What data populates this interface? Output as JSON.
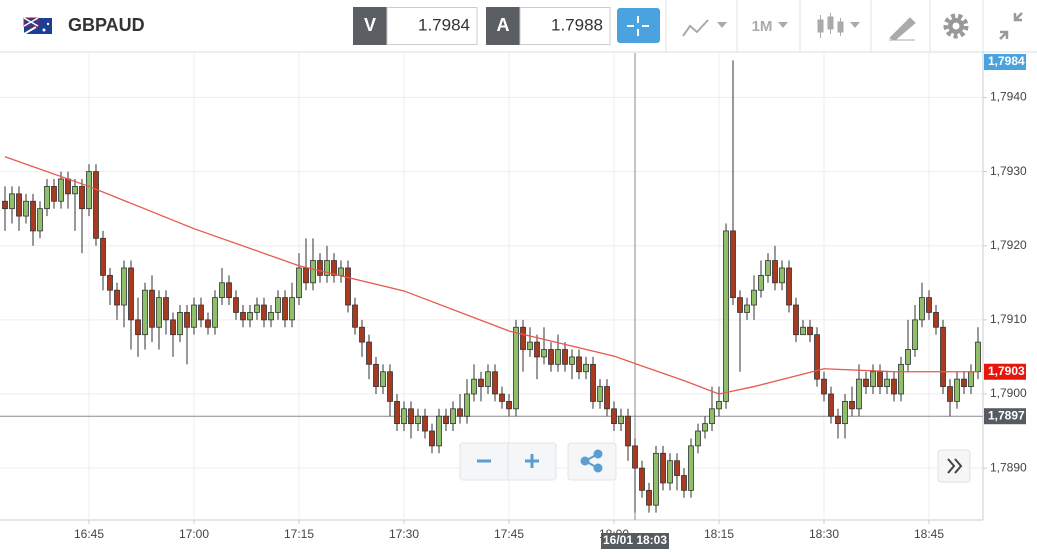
{
  "header": {
    "symbol": "GBPAUD",
    "bid_label": "V",
    "bid": "1.7984",
    "ask_label": "A",
    "ask": "1.7988",
    "timeframe": "1M"
  },
  "chart_data": {
    "type": "candlestick",
    "x": [
      "16:33",
      "16:34",
      "16:35",
      "16:36",
      "16:37",
      "16:38",
      "16:39",
      "16:40",
      "16:41",
      "16:42",
      "16:43",
      "16:44",
      "16:45",
      "16:46",
      "16:47",
      "16:48",
      "16:49",
      "16:50",
      "16:51",
      "16:52",
      "16:53",
      "16:54",
      "16:55",
      "16:56",
      "16:57",
      "16:58",
      "16:59",
      "17:00",
      "17:01",
      "17:02",
      "17:03",
      "17:04",
      "17:05",
      "17:06",
      "17:07",
      "17:08",
      "17:09",
      "17:10",
      "17:11",
      "17:12",
      "17:13",
      "17:14",
      "17:15",
      "17:16",
      "17:17",
      "17:18",
      "17:19",
      "17:20",
      "17:21",
      "17:22",
      "17:23",
      "17:24",
      "17:25",
      "17:26",
      "17:27",
      "17:28",
      "17:29",
      "17:30",
      "17:31",
      "17:32",
      "17:33",
      "17:34",
      "17:35",
      "17:36",
      "17:37",
      "17:38",
      "17:39",
      "17:40",
      "17:41",
      "17:42",
      "17:43",
      "17:44",
      "17:45",
      "17:46",
      "17:47",
      "17:48",
      "17:49",
      "17:50",
      "17:51",
      "17:52",
      "17:53",
      "17:54",
      "17:55",
      "17:56",
      "17:57",
      "17:58",
      "17:59",
      "18:00",
      "18:01",
      "18:02",
      "18:03",
      "18:04",
      "18:05",
      "18:06",
      "18:07",
      "18:08",
      "18:09",
      "18:10",
      "18:11",
      "18:12",
      "18:13",
      "18:14",
      "18:15",
      "18:16",
      "18:17",
      "18:18",
      "18:19",
      "18:20",
      "18:21",
      "18:22",
      "18:23",
      "18:24",
      "18:25",
      "18:26",
      "18:27",
      "18:28",
      "18:29",
      "18:30",
      "18:31",
      "18:32",
      "18:33",
      "18:34",
      "18:35",
      "18:36",
      "18:37",
      "18:38",
      "18:39",
      "18:40",
      "18:41",
      "18:42",
      "18:43",
      "18:44",
      "18:45",
      "18:46",
      "18:47",
      "18:48",
      "18:49",
      "18:50",
      "18:51",
      "18:52"
    ],
    "ohlc": [
      [
        1.7926,
        1.7928,
        1.7922,
        1.7925
      ],
      [
        1.7925,
        1.7928,
        1.7923,
        1.7927
      ],
      [
        1.7927,
        1.7928,
        1.7922,
        1.7924
      ],
      [
        1.7924,
        1.7927,
        1.7923,
        1.7926
      ],
      [
        1.7926,
        1.7927,
        1.792,
        1.7922
      ],
      [
        1.7922,
        1.7926,
        1.7921,
        1.7925
      ],
      [
        1.7925,
        1.7929,
        1.7924,
        1.7928
      ],
      [
        1.7928,
        1.7929,
        1.7925,
        1.7926
      ],
      [
        1.7926,
        1.793,
        1.7925,
        1.7929
      ],
      [
        1.7929,
        1.793,
        1.7925,
        1.7927
      ],
      [
        1.7927,
        1.7929,
        1.7922,
        1.7928
      ],
      [
        1.7928,
        1.7929,
        1.7919,
        1.7925
      ],
      [
        1.7925,
        1.7931,
        1.7924,
        1.793
      ],
      [
        1.793,
        1.7931,
        1.792,
        1.7921
      ],
      [
        1.7921,
        1.7922,
        1.7914,
        1.7916
      ],
      [
        1.7916,
        1.7917,
        1.7912,
        1.7914
      ],
      [
        1.7914,
        1.7915,
        1.791,
        1.7912
      ],
      [
        1.7912,
        1.7918,
        1.7909,
        1.7917
      ],
      [
        1.7917,
        1.7918,
        1.7906,
        1.791
      ],
      [
        1.791,
        1.7913,
        1.7905,
        1.7908
      ],
      [
        1.7908,
        1.7915,
        1.7906,
        1.7914
      ],
      [
        1.7914,
        1.7916,
        1.7907,
        1.7909
      ],
      [
        1.7909,
        1.7914,
        1.7906,
        1.7913
      ],
      [
        1.7913,
        1.7914,
        1.7908,
        1.791
      ],
      [
        1.791,
        1.7911,
        1.7905,
        1.7908
      ],
      [
        1.7908,
        1.7912,
        1.7907,
        1.7911
      ],
      [
        1.7911,
        1.7912,
        1.7904,
        1.7909
      ],
      [
        1.7909,
        1.7913,
        1.7908,
        1.7912
      ],
      [
        1.7912,
        1.7913,
        1.7909,
        1.791
      ],
      [
        1.791,
        1.7911,
        1.7908,
        1.7909
      ],
      [
        1.7909,
        1.7914,
        1.7908,
        1.7913
      ],
      [
        1.7913,
        1.7917,
        1.7912,
        1.7915
      ],
      [
        1.7915,
        1.7916,
        1.7912,
        1.7913
      ],
      [
        1.7913,
        1.7914,
        1.791,
        1.7911
      ],
      [
        1.7911,
        1.7912,
        1.7909,
        1.791
      ],
      [
        1.791,
        1.7912,
        1.7909,
        1.7911
      ],
      [
        1.7911,
        1.7913,
        1.791,
        1.7912
      ],
      [
        1.7912,
        1.7913,
        1.7909,
        1.791
      ],
      [
        1.791,
        1.7912,
        1.7909,
        1.7911
      ],
      [
        1.7911,
        1.7914,
        1.791,
        1.7913
      ],
      [
        1.7913,
        1.7914,
        1.7909,
        1.791
      ],
      [
        1.791,
        1.7915,
        1.7909,
        1.7913
      ],
      [
        1.7913,
        1.7919,
        1.7912,
        1.7917
      ],
      [
        1.7917,
        1.7921,
        1.7914,
        1.7915
      ],
      [
        1.7915,
        1.7921,
        1.7914,
        1.7918
      ],
      [
        1.7918,
        1.7919,
        1.7915,
        1.7916
      ],
      [
        1.7916,
        1.792,
        1.7915,
        1.7918
      ],
      [
        1.7918,
        1.7919,
        1.7915,
        1.7916
      ],
      [
        1.7916,
        1.7918,
        1.7915,
        1.7917
      ],
      [
        1.7917,
        1.7918,
        1.7911,
        1.7912
      ],
      [
        1.7912,
        1.7913,
        1.7908,
        1.7909
      ],
      [
        1.7909,
        1.791,
        1.7905,
        1.7907
      ],
      [
        1.7907,
        1.7908,
        1.7902,
        1.7904
      ],
      [
        1.7904,
        1.7905,
        1.79,
        1.7901
      ],
      [
        1.7901,
        1.7904,
        1.79,
        1.7903
      ],
      [
        1.7903,
        1.7904,
        1.7897,
        1.7899
      ],
      [
        1.7899,
        1.79,
        1.7895,
        1.7896
      ],
      [
        1.7896,
        1.7899,
        1.7895,
        1.7898
      ],
      [
        1.7898,
        1.7899,
        1.7894,
        1.7896
      ],
      [
        1.7896,
        1.7898,
        1.7895,
        1.7897
      ],
      [
        1.7897,
        1.7898,
        1.7894,
        1.7895
      ],
      [
        1.7895,
        1.7896,
        1.7892,
        1.7893
      ],
      [
        1.7893,
        1.7898,
        1.7892,
        1.7897
      ],
      [
        1.7897,
        1.7898,
        1.7895,
        1.7896
      ],
      [
        1.7896,
        1.7899,
        1.7895,
        1.7898
      ],
      [
        1.7898,
        1.79,
        1.7896,
        1.7897
      ],
      [
        1.7897,
        1.7902,
        1.7896,
        1.79
      ],
      [
        1.79,
        1.7904,
        1.7899,
        1.7902
      ],
      [
        1.7902,
        1.7903,
        1.7899,
        1.7901
      ],
      [
        1.7901,
        1.7904,
        1.79,
        1.7903
      ],
      [
        1.7903,
        1.7904,
        1.7899,
        1.79
      ],
      [
        1.79,
        1.7901,
        1.7898,
        1.7899
      ],
      [
        1.7899,
        1.79,
        1.7897,
        1.7898
      ],
      [
        1.7898,
        1.791,
        1.7897,
        1.7909
      ],
      [
        1.7909,
        1.791,
        1.7903,
        1.7906
      ],
      [
        1.7906,
        1.7909,
        1.7905,
        1.7907
      ],
      [
        1.7907,
        1.7908,
        1.7902,
        1.7905
      ],
      [
        1.7905,
        1.7909,
        1.7904,
        1.7906
      ],
      [
        1.7906,
        1.7907,
        1.7903,
        1.7904
      ],
      [
        1.7904,
        1.7908,
        1.7903,
        1.7906
      ],
      [
        1.7906,
        1.7907,
        1.7903,
        1.7904
      ],
      [
        1.7904,
        1.7906,
        1.7902,
        1.7905
      ],
      [
        1.7905,
        1.7906,
        1.7902,
        1.7903
      ],
      [
        1.7903,
        1.7905,
        1.7902,
        1.7904
      ],
      [
        1.7904,
        1.7905,
        1.7898,
        1.7899
      ],
      [
        1.7899,
        1.7902,
        1.7898,
        1.7901
      ],
      [
        1.7901,
        1.7902,
        1.7897,
        1.7898
      ],
      [
        1.7898,
        1.7899,
        1.7895,
        1.7896
      ],
      [
        1.7896,
        1.7898,
        1.7895,
        1.7897
      ],
      [
        1.7897,
        1.7898,
        1.7891,
        1.7893
      ],
      [
        1.7893,
        1.7894,
        1.7884,
        1.789
      ],
      [
        1.789,
        1.7891,
        1.7886,
        1.7887
      ],
      [
        1.7887,
        1.7888,
        1.7884,
        1.7885
      ],
      [
        1.7885,
        1.7893,
        1.7884,
        1.7892
      ],
      [
        1.7892,
        1.7893,
        1.7887,
        1.7888
      ],
      [
        1.7888,
        1.7892,
        1.7887,
        1.7891
      ],
      [
        1.7891,
        1.7892,
        1.7887,
        1.7889
      ],
      [
        1.7889,
        1.789,
        1.7886,
        1.7887
      ],
      [
        1.7887,
        1.7894,
        1.7886,
        1.7893
      ],
      [
        1.7893,
        1.7896,
        1.7892,
        1.7895
      ],
      [
        1.7895,
        1.7897,
        1.7894,
        1.7896
      ],
      [
        1.7896,
        1.7901,
        1.7895,
        1.7898
      ],
      [
        1.7898,
        1.7901,
        1.7897,
        1.7899
      ],
      [
        1.7899,
        1.7923,
        1.7898,
        1.7922
      ],
      [
        1.7922,
        1.7945,
        1.7912,
        1.7913
      ],
      [
        1.7913,
        1.7914,
        1.7903,
        1.7911
      ],
      [
        1.7911,
        1.7913,
        1.791,
        1.7912
      ],
      [
        1.7912,
        1.7916,
        1.791,
        1.7914
      ],
      [
        1.7914,
        1.7918,
        1.7913,
        1.7916
      ],
      [
        1.7916,
        1.7919,
        1.7915,
        1.7918
      ],
      [
        1.7918,
        1.792,
        1.7914,
        1.7915
      ],
      [
        1.7915,
        1.7918,
        1.7914,
        1.7917
      ],
      [
        1.7917,
        1.7918,
        1.7911,
        1.7912
      ],
      [
        1.7912,
        1.7913,
        1.7907,
        1.7908
      ],
      [
        1.7908,
        1.791,
        1.7908,
        1.7909
      ],
      [
        1.7909,
        1.791,
        1.7907,
        1.7908
      ],
      [
        1.7908,
        1.7909,
        1.7901,
        1.7902
      ],
      [
        1.7902,
        1.7903,
        1.7899,
        1.79
      ],
      [
        1.79,
        1.7901,
        1.7896,
        1.7897
      ],
      [
        1.7897,
        1.7898,
        1.7894,
        1.7896
      ],
      [
        1.7896,
        1.79,
        1.7894,
        1.7899
      ],
      [
        1.7899,
        1.7901,
        1.7897,
        1.7898
      ],
      [
        1.7898,
        1.7904,
        1.7897,
        1.7902
      ],
      [
        1.7902,
        1.7903,
        1.79,
        1.7901
      ],
      [
        1.7901,
        1.7904,
        1.79,
        1.7903
      ],
      [
        1.7903,
        1.7904,
        1.79,
        1.7901
      ],
      [
        1.7901,
        1.7903,
        1.79,
        1.7902
      ],
      [
        1.7902,
        1.7903,
        1.7899,
        1.79
      ],
      [
        1.79,
        1.7905,
        1.7899,
        1.7904
      ],
      [
        1.7904,
        1.791,
        1.7903,
        1.7906
      ],
      [
        1.7906,
        1.7912,
        1.7905,
        1.791
      ],
      [
        1.791,
        1.7915,
        1.7909,
        1.7913
      ],
      [
        1.7913,
        1.7914,
        1.791,
        1.7911
      ],
      [
        1.7911,
        1.7912,
        1.7908,
        1.7909
      ],
      [
        1.7909,
        1.791,
        1.79,
        1.7901
      ],
      [
        1.7901,
        1.7902,
        1.7897,
        1.7899
      ],
      [
        1.7899,
        1.7903,
        1.7898,
        1.7902
      ],
      [
        1.7902,
        1.7903,
        1.79,
        1.7901
      ],
      [
        1.7901,
        1.7904,
        1.79,
        1.7903
      ],
      [
        1.7903,
        1.7909,
        1.7902,
        1.7907
      ]
    ],
    "up_color": "#8fbf6a",
    "down_color": "#a83a1f",
    "overlay": {
      "color": "#e8584f",
      "x": [
        "16:33",
        "16:45",
        "17:00",
        "17:15",
        "17:30",
        "17:45",
        "18:00",
        "18:10",
        "18:15",
        "18:20",
        "18:30",
        "18:40",
        "18:52"
      ],
      "values": [
        1.7932,
        1.7928,
        1.79223,
        1.79173,
        1.79139,
        1.79085,
        1.79051,
        1.79018,
        1.79,
        1.7901,
        1.79034,
        1.7903,
        1.7903
      ]
    },
    "ylim": [
      1.7883,
      1.7946
    ],
    "yticks": [
      {
        "value": 1.789,
        "label": "1,7890"
      },
      {
        "value": 1.79,
        "label": "1,7900"
      },
      {
        "value": 1.791,
        "label": "1,7910"
      },
      {
        "value": 1.792,
        "label": "1,7920"
      },
      {
        "value": 1.793,
        "label": "1,7930"
      },
      {
        "value": 1.794,
        "label": "1,7940"
      }
    ],
    "xticks": [
      "16:45",
      "17:00",
      "17:15",
      "17:30",
      "17:45",
      "18:00",
      "18:15",
      "18:30",
      "18:45"
    ],
    "grid": true,
    "bid_tag": {
      "value": 1.7984,
      "label": "1,7984"
    },
    "last_tag": {
      "value": 1.7903,
      "label": "1,7903"
    },
    "crosshair": {
      "x": "18:03",
      "x_label": "16/01 18:03",
      "y": {
        "value": 1.7897,
        "label": "1,7897"
      }
    }
  }
}
